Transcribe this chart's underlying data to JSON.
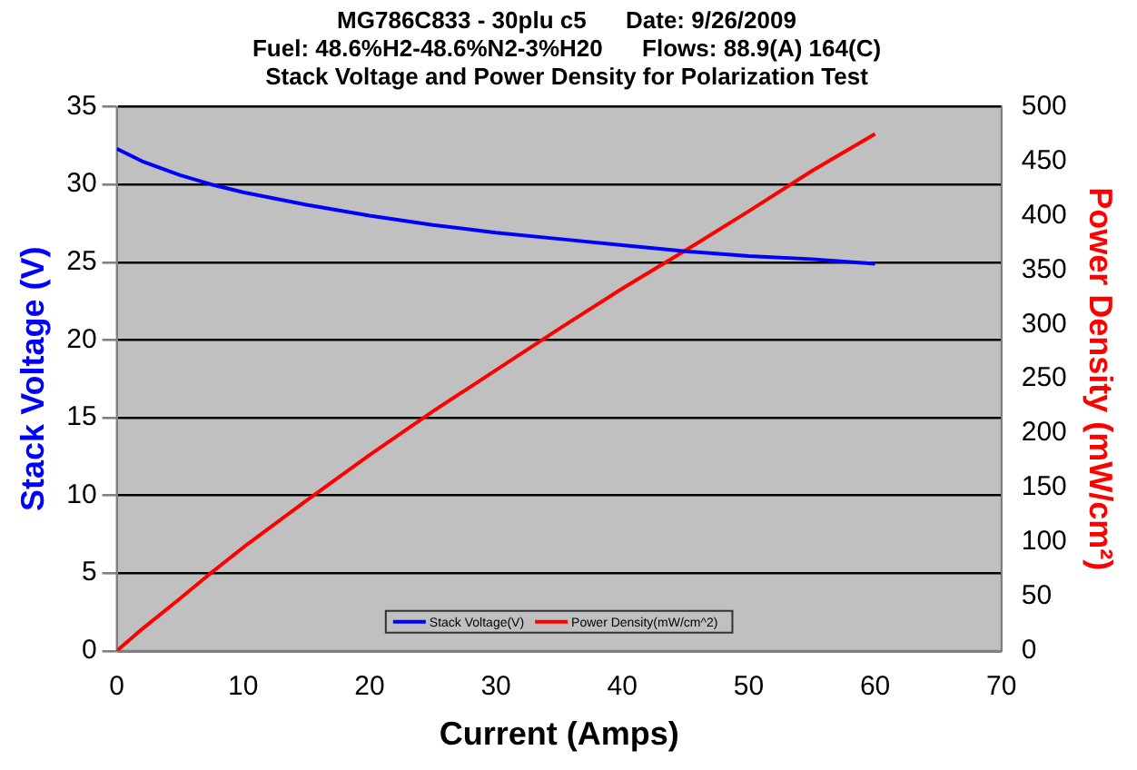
{
  "chart_data": {
    "type": "line",
    "title": [
      "MG786C833 - 30plu c5      Date: 9/26/2009",
      "Fuel: 48.6%H2-48.6%N2-3%H20      Flows: 88.9(A) 164(C)",
      "Stack Voltage and Power Density for Polarization Test"
    ],
    "xlabel": "Current (Amps)",
    "ylabel": "Stack Voltage (V)",
    "y2label": "Power Density (mW/cm²)",
    "x": [
      0,
      2,
      5,
      7.5,
      10,
      15,
      20,
      25,
      30,
      35,
      40,
      45,
      50,
      55,
      60
    ],
    "series": [
      {
        "name": "Stack Voltage(V)",
        "color": "#0000ff",
        "values": [
          32.3,
          31.5,
          30.6,
          30.0,
          29.5,
          28.7,
          28.0,
          27.4,
          26.9,
          26.5,
          26.1,
          25.7,
          25.4,
          25.2,
          24.9
        ]
      },
      {
        "name": "Power Density(mW/cm^2)",
        "color": "#ff0000",
        "axis": "y2",
        "values": [
          0,
          20,
          48,
          72,
          95,
          138,
          180,
          220,
          258,
          296,
          333,
          368,
          404,
          441,
          475
        ]
      }
    ],
    "xlim": [
      0,
      70
    ],
    "xticks": [
      0,
      10,
      20,
      30,
      40,
      50,
      60,
      70
    ],
    "ylim": [
      0,
      35
    ],
    "yticks": [
      0,
      5,
      10,
      15,
      20,
      25,
      30,
      35
    ],
    "y2lim": [
      0,
      500
    ],
    "y2ticks": [
      0,
      50,
      100,
      150,
      200,
      250,
      300,
      350,
      400,
      450,
      500
    ],
    "grid": "y",
    "legend": "bottom",
    "marker": "none",
    "line_style": "solid"
  }
}
